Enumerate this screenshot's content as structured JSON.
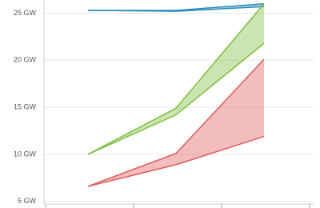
{
  "chart_data": {
    "type": "range",
    "categories": [
      null,
      null,
      null
    ],
    "ylim": [
      4.3,
      26.4
    ],
    "yticks": [
      {
        "value": 5,
        "label": "5 GW"
      },
      {
        "value": 10,
        "label": "10 GW"
      },
      {
        "value": 15,
        "label": "15 GW"
      },
      {
        "value": 20,
        "label": "20 GW"
      },
      {
        "value": 25,
        "label": "25 GW"
      }
    ],
    "grid": true,
    "series": [
      {
        "color": "#2b8cbe",
        "high": [
          25.3,
          25.3,
          26.0
        ],
        "low": [
          25.3,
          25.2,
          25.7
        ]
      },
      {
        "color": "#7cbf3f",
        "high": [
          10.0,
          14.9,
          26.0
        ],
        "low": [
          10.0,
          14.2,
          21.8
        ]
      },
      {
        "color": "#e05a5a",
        "high": [
          6.6,
          10.1,
          20.1
        ],
        "low": [
          6.6,
          8.9,
          11.9
        ]
      }
    ]
  }
}
